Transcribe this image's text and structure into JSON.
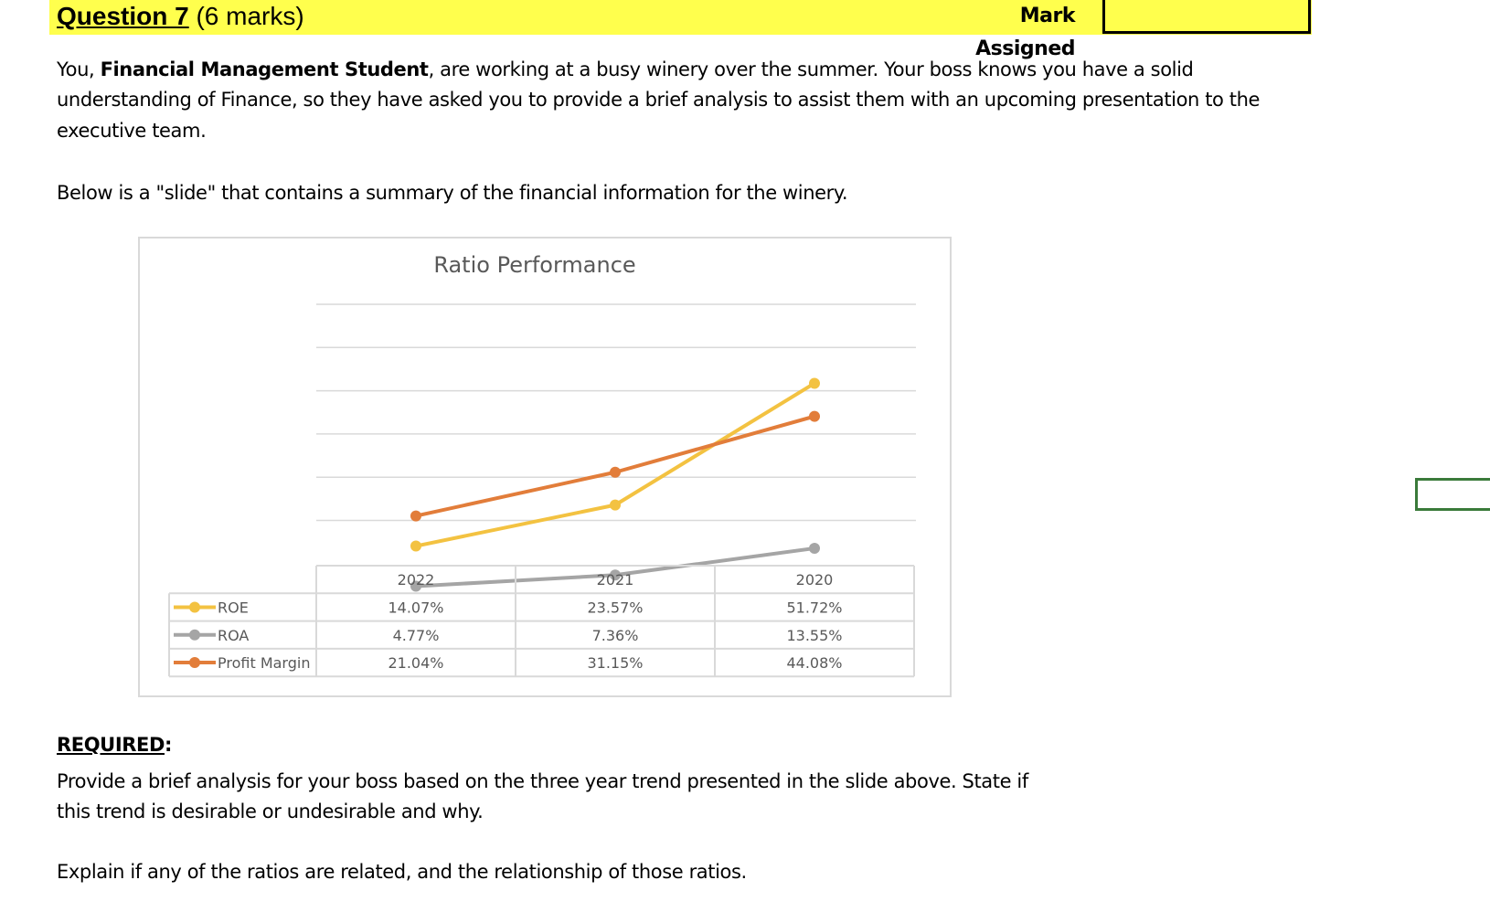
{
  "header": {
    "question_num": "Question 7",
    "question_marks": " (6 marks)",
    "mark_assigned_label": "Mark Assigned"
  },
  "intro": {
    "line1_prefix": "You, ",
    "line1_bold": "Financial Management Student",
    "line1_rest": ", are working at a busy winery over the summer. Your boss knows you have a solid",
    "line2": "understanding of Finance, so they have asked you to provide a brief analysis to assist them with an upcoming presentation to the",
    "line3": "executive team.",
    "slide_line": "Below is a \"slide\" that contains a summary of the financial information for the winery."
  },
  "required": {
    "heading": "REQUIRED",
    "colon": ":",
    "line1": "Provide a brief analysis for your boss based on the three year trend presented in the slide above. State if",
    "line2": "this trend is desirable or undesirable and why.",
    "line3": "Explain if any of the ratios are related, and the relationship of those ratios."
  },
  "colors": {
    "header_band": "#ffff4d",
    "roe": "#f3c241",
    "roa": "#a5a5a5",
    "profit_margin": "#e27d3a",
    "gridline": "#d9d9d9",
    "side_box": "#3a7a3a"
  },
  "chart_data": {
    "type": "line",
    "title": "Ratio Performance",
    "categories": [
      "2022",
      "2021",
      "2020"
    ],
    "series": [
      {
        "name": "ROE",
        "values": [
          14.07,
          23.57,
          51.72
        ],
        "labels": [
          "14.07%",
          "23.57%",
          "51.72%"
        ],
        "color": "#f3c241"
      },
      {
        "name": "ROA",
        "values": [
          4.77,
          7.36,
          13.55
        ],
        "labels": [
          "4.77%",
          "7.36%",
          "13.55%"
        ],
        "color": "#a5a5a5"
      },
      {
        "name": "Profit Margin",
        "values": [
          21.04,
          31.15,
          44.08
        ],
        "labels": [
          "21.04%",
          "31.15%",
          "44.08%"
        ],
        "color": "#e27d3a"
      }
    ],
    "ylim": [
      -30,
      70
    ],
    "y_tick_step": 10,
    "grid": true,
    "data_table": true,
    "legend": "in data table"
  }
}
